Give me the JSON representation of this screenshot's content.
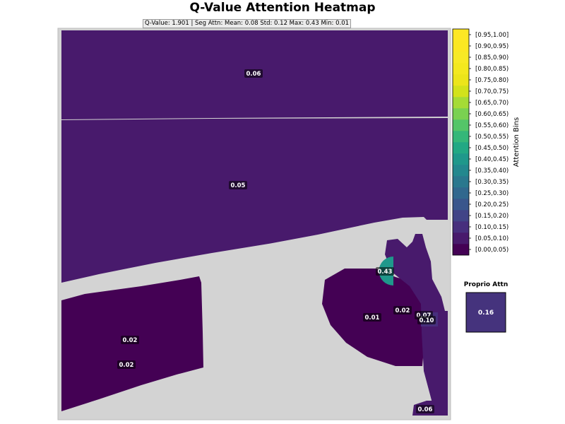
{
  "chart_data": {
    "type": "heatmap",
    "title": "Q-Value Attention Heatmap",
    "stats_text": "Q-Value: 1.901  |  Seg Attn: Mean: 0.08 Std: 0.12 Max: 0.43 Min: 0.01",
    "colormap": "viridis",
    "background_color": "#d3d3d3",
    "segments": [
      {
        "id": "top-band",
        "value": 0.06,
        "label": "0.06"
      },
      {
        "id": "middle-band",
        "value": 0.05,
        "label": "0.05"
      },
      {
        "id": "left-block",
        "value": 0.02,
        "labels": [
          "0.02",
          "0.02"
        ]
      },
      {
        "id": "right-blob",
        "value": 0.01,
        "label": "0.01"
      },
      {
        "id": "right-arm",
        "value": 0.07,
        "label": "0.07"
      },
      {
        "id": "arm-joint-a",
        "value": 0.02,
        "label": "0.02"
      },
      {
        "id": "arm-joint-b",
        "value": 0.1,
        "label": "0.10"
      },
      {
        "id": "hot-spot",
        "value": 0.43,
        "label": "0.43"
      },
      {
        "id": "bottom-corner",
        "value": 0.06,
        "label": "0.06"
      }
    ],
    "colorbar": {
      "label": "Attention Bins",
      "bins": [
        "[0.00,0.05)",
        "[0.05,0.10)",
        "[0.10,0.15)",
        "[0.15,0.20)",
        "[0.20,0.25)",
        "[0.25,0.30)",
        "[0.30,0.35)",
        "[0.35,0.40)",
        "[0.40,0.45)",
        "[0.45,0.50)",
        "[0.50,0.55)",
        "[0.55,0.60)",
        "[0.60,0.65)",
        "[0.65,0.70)",
        "[0.70,0.75)",
        "[0.75,0.80)",
        "[0.80,0.85)",
        "[0.85,0.90)",
        "[0.90,0.95)",
        "[0.95,1.00]"
      ],
      "colors": [
        "#440154",
        "#481a6c",
        "#472f7d",
        "#414487",
        "#39568c",
        "#31688e",
        "#2a788e",
        "#23888e",
        "#1f988b",
        "#22a884",
        "#35b779",
        "#54c568",
        "#7ad151",
        "#a5db36",
        "#d2e21b",
        "#ece51b",
        "#f3e81f",
        "#f7e925",
        "#fbe723",
        "#fde725"
      ]
    },
    "proprio": {
      "title": "Proprio Attn",
      "value": 0.16,
      "label": "0.16",
      "color": "#45337d"
    }
  }
}
